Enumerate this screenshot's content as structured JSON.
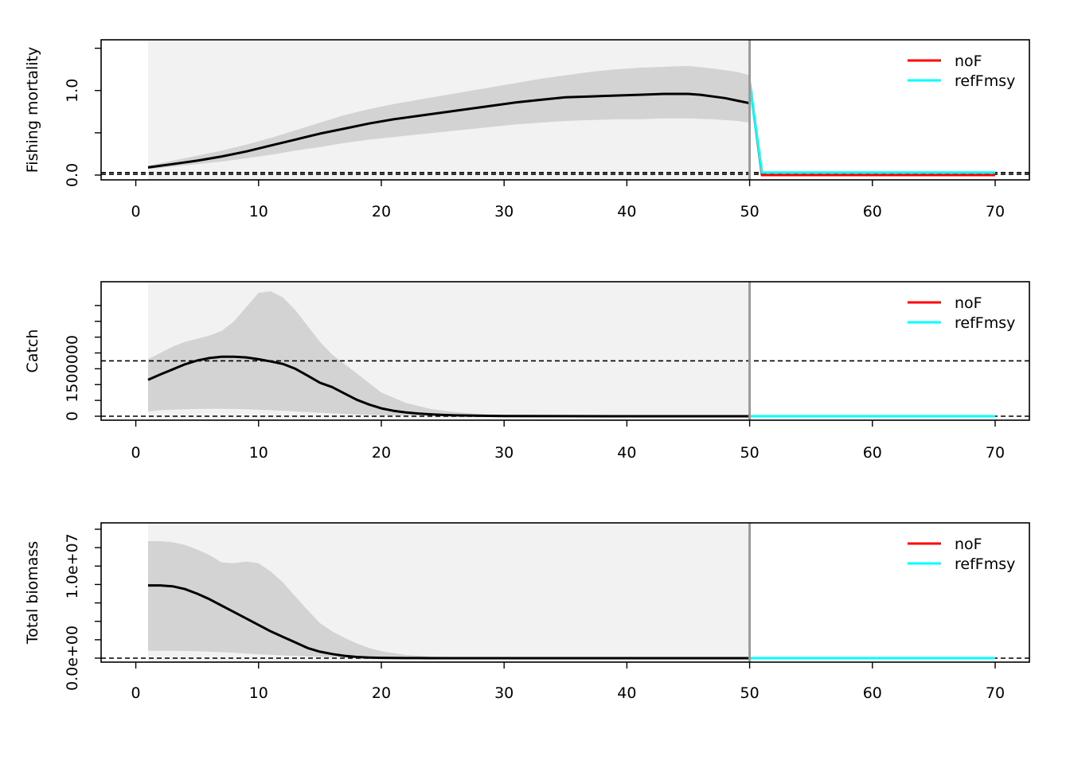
{
  "colors": {
    "historical_bg": "#f2f2f2",
    "ci_band": "#d3d3d3",
    "median_line": "#000000",
    "divider": "#999999",
    "noF": "#ff0000",
    "refFmsy": "#00ffff"
  },
  "chart_data": [
    {
      "type": "line",
      "ylabel": "Fishing mortality",
      "xlim": [
        1,
        70
      ],
      "ylim": [
        0,
        1.6
      ],
      "xticks": [
        0,
        10,
        20,
        30,
        40,
        50,
        60,
        70
      ],
      "yticks_major": [
        0,
        1
      ],
      "ytick_labels": [
        "0.0",
        "1.0"
      ],
      "yticks_minor": [
        0,
        0.5,
        1,
        1.5
      ],
      "historical_end": 50,
      "ref_lines": [
        0.01,
        0.03
      ],
      "legend": {
        "position": "top-right",
        "entries": [
          "noF",
          "refFmsy"
        ]
      },
      "band": {
        "x": [
          1,
          3,
          5,
          7,
          9,
          11,
          13,
          15,
          17,
          19,
          21,
          23,
          25,
          27,
          29,
          31,
          33,
          35,
          37,
          39,
          41,
          43,
          45,
          47,
          49,
          50
        ],
        "upper": [
          0.11,
          0.17,
          0.23,
          0.29,
          0.36,
          0.44,
          0.53,
          0.62,
          0.71,
          0.78,
          0.84,
          0.89,
          0.94,
          0.99,
          1.04,
          1.09,
          1.14,
          1.18,
          1.22,
          1.25,
          1.27,
          1.28,
          1.29,
          1.26,
          1.22,
          1.18
        ],
        "lower": [
          0.07,
          0.1,
          0.13,
          0.16,
          0.2,
          0.24,
          0.29,
          0.33,
          0.38,
          0.42,
          0.45,
          0.48,
          0.51,
          0.54,
          0.57,
          0.6,
          0.62,
          0.64,
          0.65,
          0.66,
          0.66,
          0.67,
          0.67,
          0.66,
          0.64,
          0.62
        ]
      },
      "median": {
        "x": [
          1,
          3,
          5,
          7,
          9,
          11,
          13,
          15,
          17,
          19,
          21,
          23,
          25,
          27,
          29,
          31,
          33,
          35,
          37,
          39,
          41,
          43,
          45,
          46,
          47,
          48,
          49,
          50
        ],
        "y": [
          0.09,
          0.13,
          0.17,
          0.22,
          0.28,
          0.35,
          0.42,
          0.49,
          0.55,
          0.61,
          0.66,
          0.7,
          0.74,
          0.78,
          0.82,
          0.86,
          0.89,
          0.92,
          0.93,
          0.94,
          0.95,
          0.96,
          0.96,
          0.95,
          0.93,
          0.91,
          0.88,
          0.85
        ]
      },
      "series": [
        {
          "name": "noF",
          "x": [
            50,
            51,
            70
          ],
          "y": [
            1.1,
            0,
            0
          ]
        },
        {
          "name": "refFmsy",
          "x": [
            50,
            51,
            70
          ],
          "y": [
            1.1,
            0.03,
            0.03
          ]
        }
      ]
    },
    {
      "type": "line",
      "ylabel": "Catch",
      "xlim": [
        1,
        70
      ],
      "ylim": [
        0,
        4000000
      ],
      "xticks": [
        0,
        10,
        20,
        30,
        40,
        50,
        60,
        70
      ],
      "yticks_major": [
        0,
        1500000
      ],
      "ytick_labels": [
        "0",
        "1500000"
      ],
      "yticks_minor": [
        0,
        500000,
        1000000,
        1500000,
        2000000,
        2500000,
        3000000,
        3500000
      ],
      "historical_end": 50,
      "ref_lines": [
        0,
        1750000
      ],
      "legend": {
        "position": "top-right",
        "entries": [
          "noF",
          "refFmsy"
        ]
      },
      "band": {
        "x": [
          1,
          2,
          3,
          4,
          5,
          6,
          7,
          8,
          9,
          10,
          11,
          12,
          13,
          14,
          15,
          16,
          18,
          20,
          22,
          24,
          26,
          28,
          30,
          35,
          40,
          45,
          50
        ],
        "upper": [
          1800000,
          2000000,
          2200000,
          2350000,
          2450000,
          2550000,
          2700000,
          3000000,
          3450000,
          3900000,
          3950000,
          3750000,
          3350000,
          2850000,
          2350000,
          1950000,
          1350000,
          750000,
          420000,
          230000,
          130000,
          70000,
          35000,
          10000,
          4000,
          2000,
          1000
        ],
        "lower": [
          150000,
          190000,
          210000,
          220000,
          230000,
          235000,
          235000,
          230000,
          220000,
          205000,
          190000,
          170000,
          150000,
          130000,
          110000,
          90000,
          55000,
          30000,
          15000,
          8000,
          4000,
          2000,
          1000,
          0,
          0,
          0,
          0
        ]
      },
      "median": {
        "x": [
          1,
          2,
          3,
          4,
          5,
          6,
          7,
          8,
          9,
          10,
          11,
          12,
          13,
          14,
          15,
          16,
          17,
          18,
          19,
          20,
          21,
          22,
          23,
          24,
          25,
          26,
          28,
          30,
          35,
          40,
          45,
          50
        ],
        "y": [
          1150000,
          1320000,
          1480000,
          1640000,
          1760000,
          1840000,
          1880000,
          1880000,
          1860000,
          1800000,
          1730000,
          1650000,
          1500000,
          1280000,
          1060000,
          920000,
          720000,
          520000,
          370000,
          250000,
          170000,
          120000,
          85000,
          60000,
          40000,
          28000,
          14000,
          7000,
          2000,
          0,
          0,
          0
        ]
      },
      "series": [
        {
          "name": "noF",
          "x": [
            50,
            70
          ],
          "y": [
            0,
            0
          ]
        },
        {
          "name": "refFmsy",
          "x": [
            50,
            70
          ],
          "y": [
            0,
            0
          ]
        }
      ]
    },
    {
      "type": "line",
      "ylabel": "Total biomass",
      "xlim": [
        1,
        70
      ],
      "ylim": [
        0,
        14000000
      ],
      "xticks": [
        0,
        10,
        20,
        30,
        40,
        50,
        60,
        70
      ],
      "yticks_major": [
        0,
        10000000
      ],
      "ytick_labels": [
        "0.0e+00",
        "1.0e+07"
      ],
      "yticks_minor": [
        0,
        2000000,
        4000000,
        6000000,
        8000000,
        10000000,
        12000000,
        14000000
      ],
      "historical_end": 50,
      "ref_lines": [
        0
      ],
      "legend": {
        "position": "top-right",
        "entries": [
          "noF",
          "refFmsy"
        ]
      },
      "band": {
        "x": [
          1,
          2,
          3,
          4,
          5,
          6,
          7,
          8,
          9,
          10,
          11,
          12,
          13,
          14,
          15,
          16,
          17,
          18,
          19,
          20,
          22,
          24,
          26,
          28,
          30,
          35,
          40,
          45,
          50
        ],
        "upper": [
          12700000,
          12700000,
          12600000,
          12300000,
          11800000,
          11200000,
          10400000,
          10300000,
          10500000,
          10300000,
          9400000,
          8200000,
          6700000,
          5200000,
          3800000,
          2900000,
          2200000,
          1600000,
          1100000,
          750000,
          350000,
          180000,
          90000,
          45000,
          20000,
          5000,
          1000,
          0,
          0
        ],
        "lower": [
          800000,
          800000,
          800000,
          780000,
          750000,
          700000,
          650000,
          580000,
          500000,
          420000,
          360000,
          300000,
          250000,
          200000,
          150000,
          120000,
          90000,
          60000,
          40000,
          25000,
          10000,
          4000,
          1000,
          0,
          0,
          0,
          0,
          0,
          0
        ]
      },
      "median": {
        "x": [
          1,
          2,
          3,
          4,
          5,
          6,
          7,
          8,
          9,
          10,
          11,
          12,
          13,
          14,
          15,
          16,
          17,
          18,
          19,
          20,
          21,
          22,
          23,
          24,
          25,
          26,
          28,
          30,
          35,
          40,
          45,
          50
        ],
        "y": [
          7900000,
          7900000,
          7800000,
          7500000,
          7000000,
          6400000,
          5700000,
          5000000,
          4300000,
          3600000,
          2900000,
          2300000,
          1700000,
          1100000,
          700000,
          450000,
          250000,
          130000,
          70000,
          35000,
          18000,
          9000,
          5000,
          2500,
          1200,
          600,
          200,
          0,
          0,
          0,
          0,
          0
        ]
      },
      "series": [
        {
          "name": "noF",
          "x": [
            50,
            70
          ],
          "y": [
            0,
            0
          ]
        },
        {
          "name": "refFmsy",
          "x": [
            50,
            70
          ],
          "y": [
            0,
            0
          ]
        }
      ]
    }
  ]
}
